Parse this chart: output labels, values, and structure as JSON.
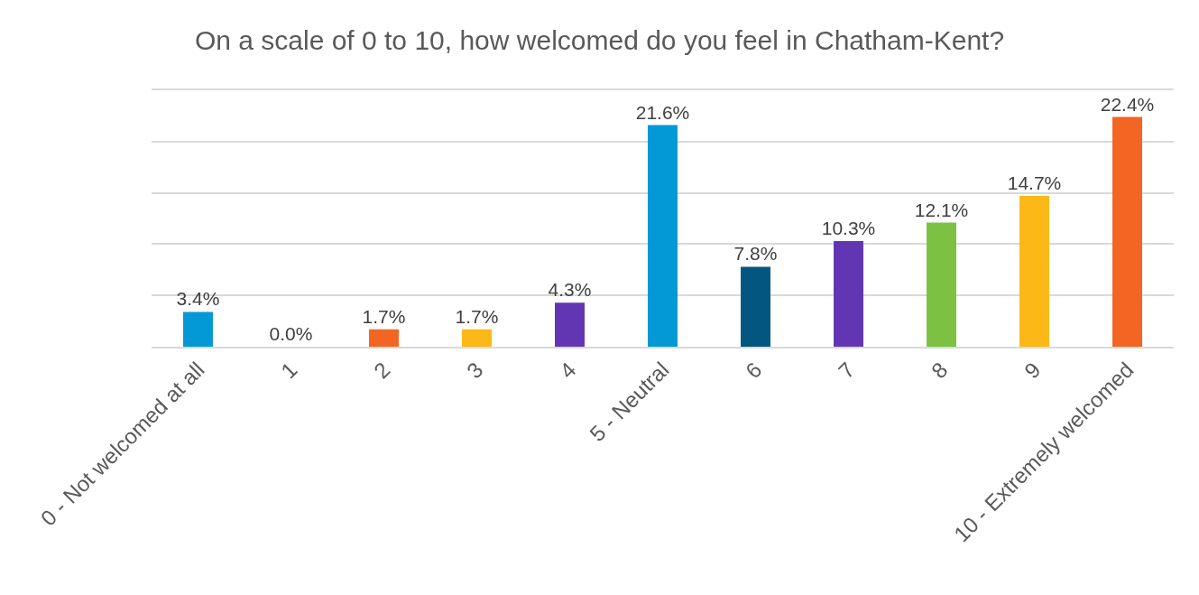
{
  "chart_data": {
    "type": "bar",
    "title": "On a scale of 0 to 10, how welcomed do you feel in Chatham-Kent?",
    "categories": [
      "0 - Not welcomed at all",
      "1",
      "2",
      "3",
      "4",
      "5 - Neutral",
      "6",
      "7",
      "8",
      "9",
      "10 - Extremely welcomed"
    ],
    "values": [
      3.4,
      0.0,
      1.7,
      1.7,
      4.3,
      21.6,
      7.8,
      10.3,
      12.1,
      14.7,
      22.4
    ],
    "value_labels": [
      "3.4%",
      "0.0%",
      "1.7%",
      "1.7%",
      "4.3%",
      "21.6%",
      "7.8%",
      "10.3%",
      "12.1%",
      "14.7%",
      "22.4%"
    ],
    "colors": [
      "#0399d7",
      "#0399d7",
      "#f26522",
      "#fbb817",
      "#6236b3",
      "#0399d7",
      "#03567f",
      "#6236b3",
      "#7dc142",
      "#fbb817",
      "#f26522"
    ],
    "ylim": [
      0,
      25
    ],
    "yticks": [
      {
        "value": 0,
        "label": null
      },
      {
        "value": 5,
        "label": null
      },
      {
        "value": 10,
        "label": null
      },
      {
        "value": 15,
        "label": null
      },
      {
        "value": 20,
        "label": null
      },
      {
        "value": 25,
        "label": null
      }
    ],
    "grid": "y",
    "tick_labels": "x"
  }
}
